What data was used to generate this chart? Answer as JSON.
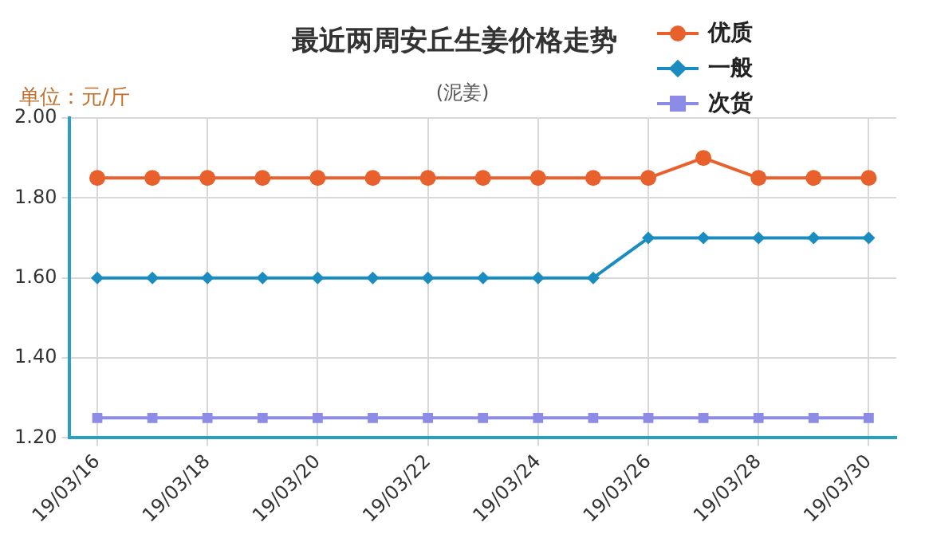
{
  "chart_data": {
    "type": "line",
    "title": "最近两周安丘生姜价格走势",
    "subtitle": "(泥姜)",
    "ylabel": "单位：元/斤",
    "categories": [
      "19/03/16",
      null,
      "19/03/18",
      null,
      "19/03/20",
      null,
      "19/03/22",
      null,
      "19/03/24",
      null,
      "19/03/26",
      null,
      "19/03/28",
      null,
      "19/03/30"
    ],
    "series": [
      {
        "name": "优质",
        "color": "#e8602c",
        "marker": "circle",
        "values": [
          1.85,
          1.85,
          1.85,
          1.85,
          1.85,
          1.85,
          1.85,
          1.85,
          1.85,
          1.85,
          1.85,
          1.9,
          1.85,
          1.85,
          1.85
        ]
      },
      {
        "name": "一般",
        "color": "#1a8cbf",
        "marker": "diamond",
        "values": [
          1.6,
          1.6,
          1.6,
          1.6,
          1.6,
          1.6,
          1.6,
          1.6,
          1.6,
          1.6,
          1.7,
          1.7,
          1.7,
          1.7,
          1.7
        ]
      },
      {
        "name": "次货",
        "color": "#8c8ce6",
        "marker": "square",
        "values": [
          1.25,
          1.25,
          1.25,
          1.25,
          1.25,
          1.25,
          1.25,
          1.25,
          1.25,
          1.25,
          1.25,
          1.25,
          1.25,
          1.25,
          1.25
        ]
      }
    ],
    "ylim": [
      1.2,
      2.0
    ],
    "yticks": [
      {
        "value": 1.2,
        "label": "1.20"
      },
      {
        "value": 1.4,
        "label": "1.40"
      },
      {
        "value": 1.6,
        "label": "1.60"
      },
      {
        "value": 1.8,
        "label": "1.80"
      },
      {
        "value": 2.0,
        "label": "2.00"
      }
    ],
    "grid": true,
    "legend": "top right",
    "line_style": "solid"
  }
}
